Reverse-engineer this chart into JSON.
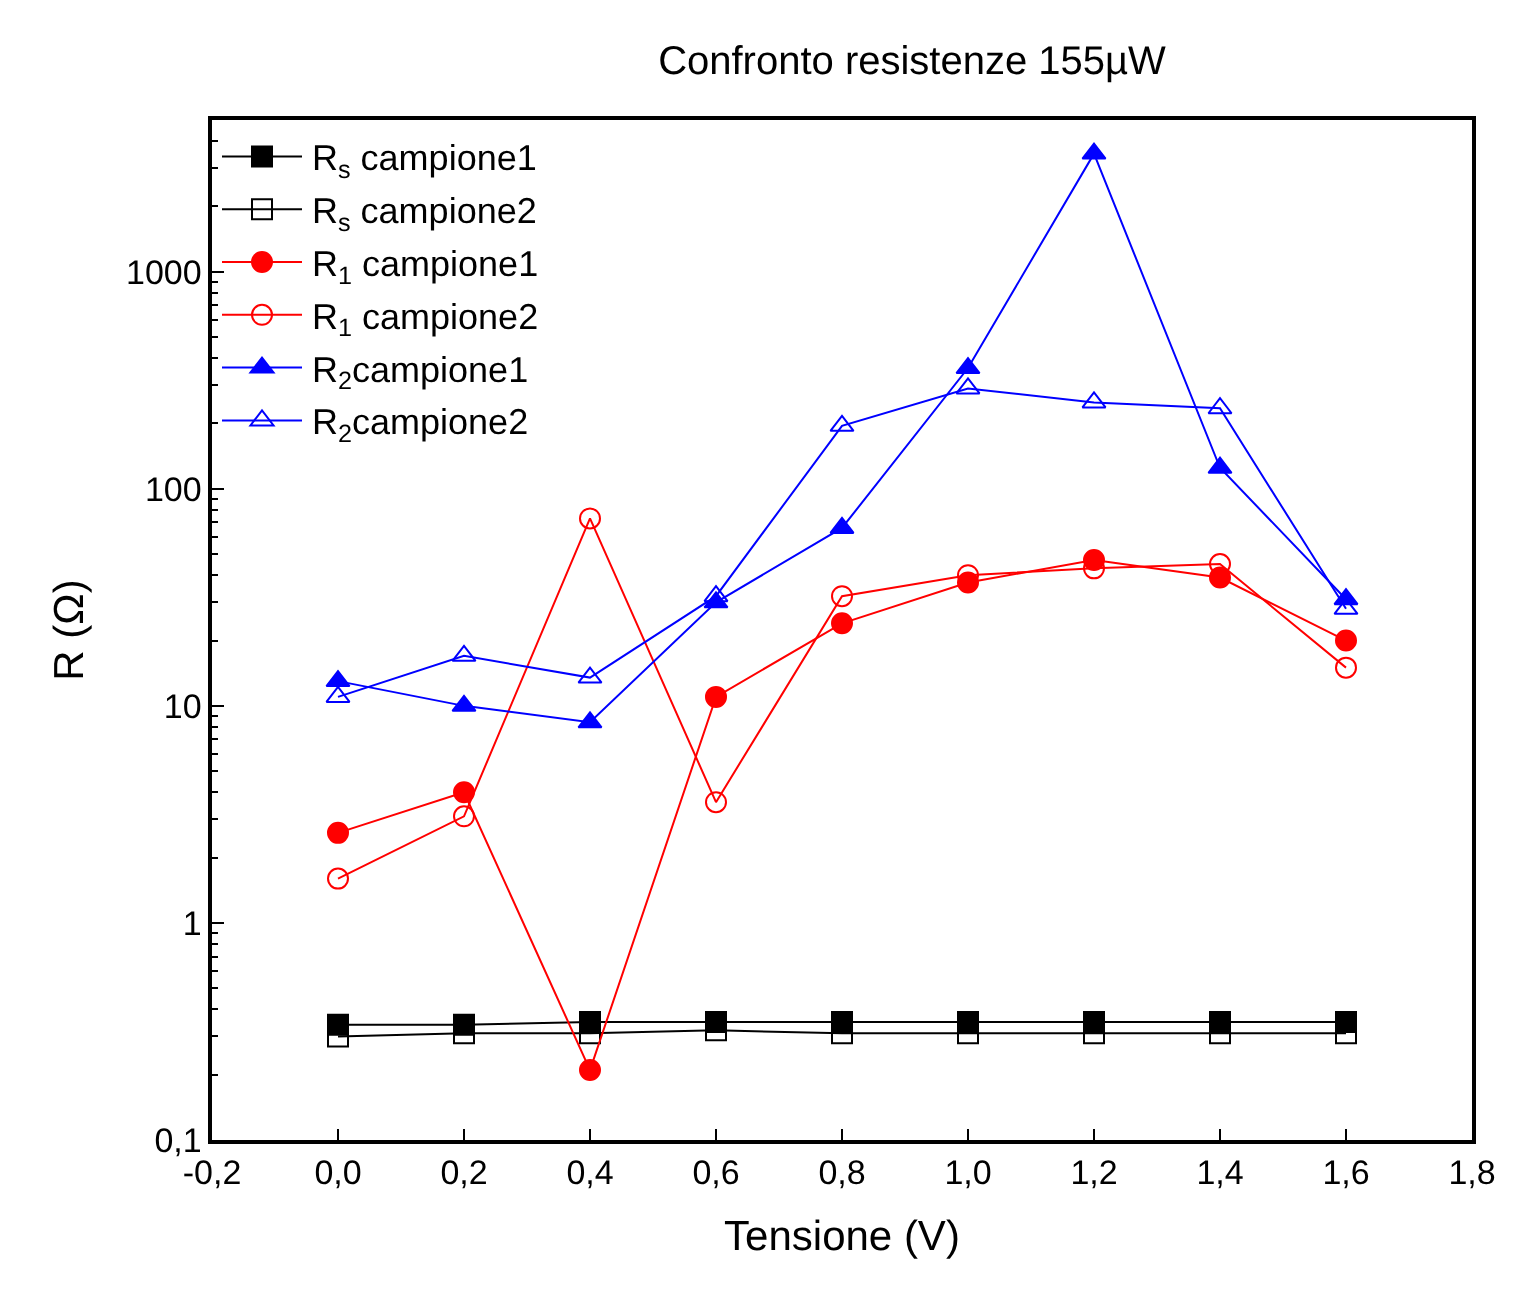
{
  "chart_data": {
    "type": "line",
    "title": "Confronto resistenze 155µW",
    "xlabel": "Tensione (V)",
    "ylabel": "R (Ω)",
    "x": [
      0.0,
      0.2,
      0.4,
      0.6,
      0.8,
      1.0,
      1.2,
      1.4,
      1.6
    ],
    "series": [
      {
        "name": "R$_{s}$ campione1",
        "color": "#000000",
        "marker": "square",
        "values": [
          0.34,
          0.34,
          0.35,
          0.35,
          0.35,
          0.35,
          0.35,
          0.35,
          0.35
        ]
      },
      {
        "name": "R$_{s}$ campione2",
        "color": "#000000",
        "marker": "square-open",
        "values": [
          0.3,
          0.31,
          0.31,
          0.32,
          0.31,
          0.31,
          0.31,
          0.31,
          0.31
        ]
      },
      {
        "name": "R$_{1}$ campione1",
        "color": "#ff0000",
        "marker": "circle",
        "values": [
          2.6,
          4.0,
          0.21,
          11,
          24,
          37,
          47,
          39,
          20
        ]
      },
      {
        "name": "R$_{1}$ campione2",
        "color": "#ff0000",
        "marker": "circle-open",
        "values": [
          1.6,
          3.1,
          73,
          3.6,
          32,
          40,
          43,
          45,
          15
        ]
      },
      {
        "name": "R$_{2}$campione1",
        "color": "#0000ff",
        "marker": "triangle",
        "values": [
          13,
          10,
          8.4,
          30,
          66,
          360,
          3500,
          125,
          31
        ]
      },
      {
        "name": "R$_{2}$campione2",
        "color": "#0000ff",
        "marker": "triangle-open",
        "values": [
          11,
          17,
          13.5,
          32,
          195,
          290,
          250,
          235,
          28
        ]
      }
    ],
    "xlim": [
      -0.2,
      1.8
    ],
    "xticks": [
      {
        "value": -0.2,
        "label": "-0,2"
      },
      {
        "value": 0.0,
        "label": "0,0"
      },
      {
        "value": 0.2,
        "label": "0,2"
      },
      {
        "value": 0.4,
        "label": "0,4"
      },
      {
        "value": 0.6,
        "label": "0,6"
      },
      {
        "value": 0.8,
        "label": "0,8"
      },
      {
        "value": 1.0,
        "label": "1,0"
      },
      {
        "value": 1.2,
        "label": "1,2"
      },
      {
        "value": 1.4,
        "label": "1,4"
      },
      {
        "value": 1.6,
        "label": "1,6"
      },
      {
        "value": 1.8,
        "label": "1,8"
      }
    ],
    "ylim": [
      0.1,
      5000
    ],
    "yticks": [
      {
        "value": 0.1,
        "label": "0,1"
      },
      1,
      10,
      100,
      1000
    ],
    "log": true,
    "legend": "top left",
    "line_style": "solid"
  }
}
